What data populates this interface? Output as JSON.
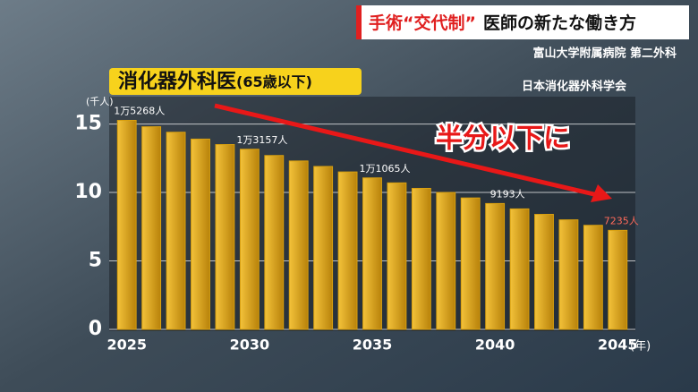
{
  "chart_data": {
    "type": "bar",
    "title": "手術“交代制”",
    "subtitle": "医師の新たな働き方",
    "source_1": "富山大学附属病院 第二外科",
    "source_2": "日本消化器外科学会",
    "series_label": "消化器外科医",
    "series_note": "(65歳以下)",
    "annotation": "半分以下に",
    "y_unit": "(千人)",
    "x_unit": "(年)",
    "categories": [
      "2025",
      null,
      null,
      null,
      null,
      "2030",
      null,
      null,
      null,
      null,
      "2035",
      null,
      null,
      null,
      null,
      "2040",
      null,
      null,
      null,
      null,
      "2045"
    ],
    "values": [
      15.268,
      14.8,
      14.4,
      13.9,
      13.5,
      13.157,
      12.7,
      12.3,
      11.9,
      11.5,
      11.065,
      10.7,
      10.3,
      10.0,
      9.6,
      9.193,
      8.8,
      8.4,
      8.0,
      7.6,
      7.235
    ],
    "value_labels": [
      "1万5268人",
      null,
      null,
      null,
      null,
      "1万3157人",
      null,
      null,
      null,
      null,
      "1万1065人",
      null,
      null,
      null,
      null,
      "9193人",
      null,
      null,
      null,
      null,
      "7235人"
    ],
    "color": "#d9a00f",
    "ylim": [
      0,
      17
    ],
    "yticks": [
      0,
      5,
      10,
      15
    ],
    "grid": true
  }
}
